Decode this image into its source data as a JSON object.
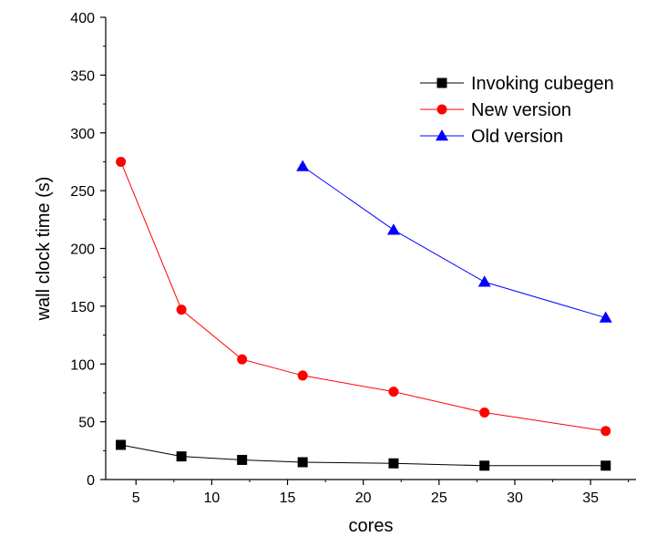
{
  "chart_data": {
    "type": "line",
    "xlabel": "cores",
    "ylabel": "wall clock time (s)",
    "xlim": [
      3,
      38
    ],
    "ylim": [
      0,
      400
    ],
    "xticks": [
      5,
      10,
      15,
      20,
      25,
      30,
      35
    ],
    "yticks": [
      0,
      50,
      100,
      150,
      200,
      250,
      300,
      350,
      400
    ],
    "grid": false,
    "legend_position": "top-right",
    "series": [
      {
        "name": "Invoking cubegen",
        "color": "#000000",
        "marker": "square",
        "x": [
          4,
          8,
          12,
          16,
          22,
          28,
          36
        ],
        "y": [
          30,
          20,
          17,
          15,
          14,
          12,
          12
        ]
      },
      {
        "name": "New version",
        "color": "#ff0000",
        "marker": "circle",
        "x": [
          4,
          8,
          12,
          16,
          22,
          28,
          36
        ],
        "y": [
          275,
          147,
          104,
          90,
          76,
          58,
          42
        ]
      },
      {
        "name": "Old version",
        "color": "#0000ff",
        "marker": "triangle",
        "x": [
          16,
          22,
          28,
          36
        ],
        "y": [
          271,
          216,
          171,
          140
        ]
      }
    ]
  }
}
